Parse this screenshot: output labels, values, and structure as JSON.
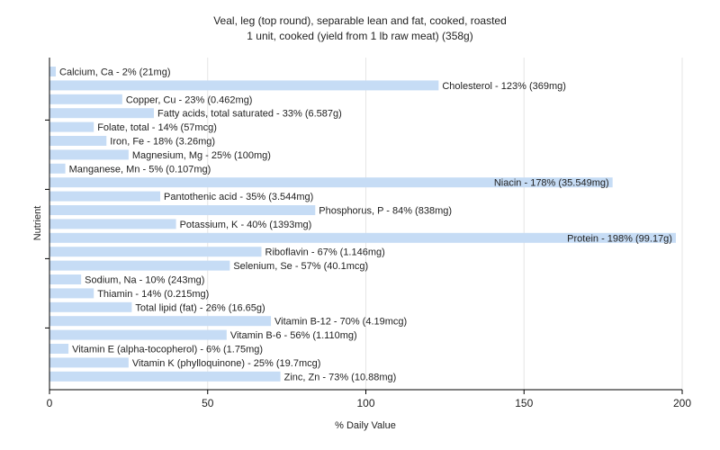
{
  "chart_data": {
    "type": "bar",
    "orientation": "horizontal",
    "title": "Veal, leg (top round), separable lean and fat, cooked, roasted",
    "subtitle": "1 unit, cooked (yield from 1 lb raw meat) (358g)",
    "xlabel": "% Daily Value",
    "ylabel": "Nutrient",
    "xlim": [
      0,
      200
    ],
    "xticks": [
      0,
      50,
      100,
      150,
      200
    ],
    "grid": "vertical",
    "bar_color": "#c6dcf5",
    "categories": [
      "Calcium, Ca",
      "Cholesterol",
      "Copper, Cu",
      "Fatty acids, total saturated",
      "Folate, total",
      "Iron, Fe",
      "Magnesium, Mg",
      "Manganese, Mn",
      "Niacin",
      "Pantothenic acid",
      "Phosphorus, P",
      "Potassium, K",
      "Protein",
      "Riboflavin",
      "Selenium, Se",
      "Sodium, Na",
      "Thiamin",
      "Total lipid (fat)",
      "Vitamin B-12",
      "Vitamin B-6",
      "Vitamin E (alpha-tocopherol)",
      "Vitamin K (phylloquinone)",
      "Zinc, Zn"
    ],
    "values": [
      2,
      123,
      23,
      33,
      14,
      18,
      25,
      5,
      178,
      35,
      84,
      40,
      198,
      67,
      57,
      10,
      14,
      26,
      70,
      56,
      6,
      25,
      73
    ],
    "labels": [
      "Calcium, Ca - 2% (21mg)",
      "Cholesterol - 123% (369mg)",
      "Copper, Cu - 23% (0.462mg)",
      "Fatty acids, total saturated - 33% (6.587g)",
      "Folate, total - 14% (57mcg)",
      "Iron, Fe - 18% (3.26mg)",
      "Magnesium, Mg - 25% (100mg)",
      "Manganese, Mn - 5% (0.107mg)",
      "Niacin - 178% (35.549mg)",
      "Pantothenic acid - 35% (3.544mg)",
      "Phosphorus, P - 84% (838mg)",
      "Potassium, K - 40% (1393mg)",
      "Protein - 198% (99.17g)",
      "Riboflavin - 67% (1.146mg)",
      "Selenium, Se - 57% (40.1mcg)",
      "Sodium, Na - 10% (243mg)",
      "Thiamin - 14% (0.215mg)",
      "Total lipid (fat) - 26% (16.65g)",
      "Vitamin B-12 - 70% (4.19mcg)",
      "Vitamin B-6 - 56% (1.110mg)",
      "Vitamin E (alpha-tocopherol) - 6% (1.75mg)",
      "Vitamin K (phylloquinone) - 25% (19.7mcg)",
      "Zinc, Zn - 73% (10.88mg)"
    ]
  }
}
